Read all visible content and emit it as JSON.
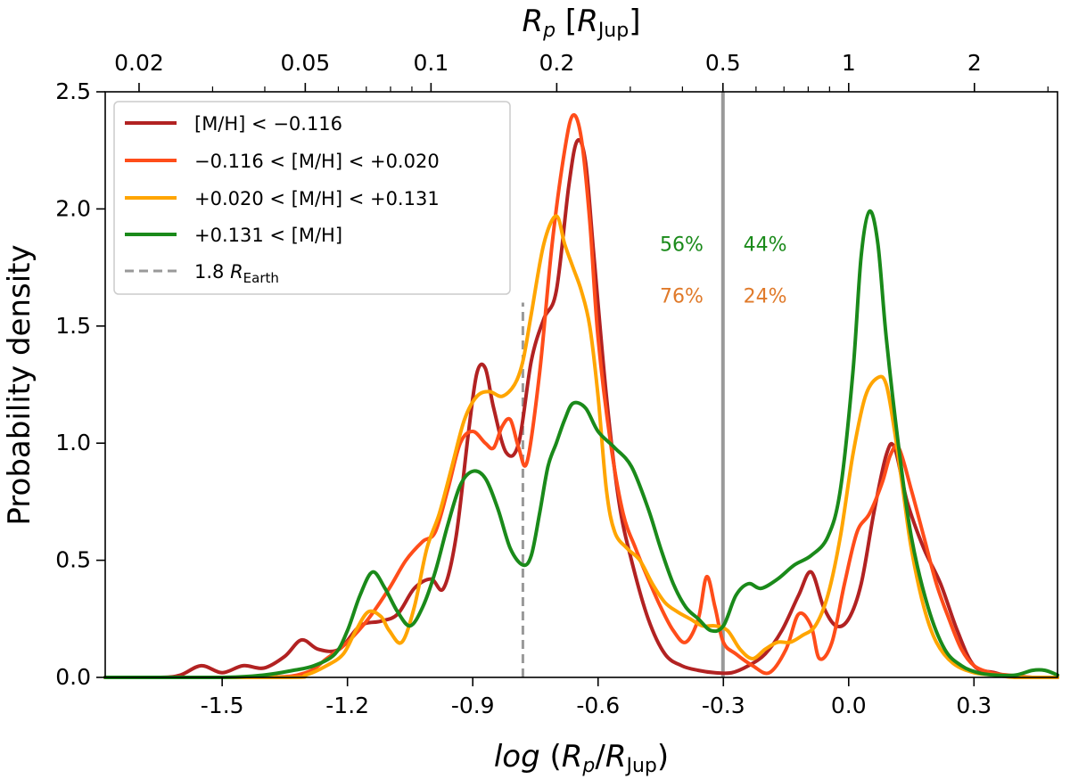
{
  "chart_data": {
    "type": "line",
    "xlabel": "log (R_p/R_Jup)",
    "ylabel": "Probability density",
    "top_xlabel": "R_p [R_Jup]",
    "xlim": [
      -1.78,
      0.5
    ],
    "ylim": [
      0,
      2.5
    ],
    "x_ticks": [
      -1.5,
      -1.2,
      -0.9,
      -0.6,
      -0.3,
      0.0,
      0.3
    ],
    "x_tick_labels": [
      "-1.5",
      "-1.2",
      "-0.9",
      "-0.6",
      "-0.3",
      "0.0",
      "0.3"
    ],
    "y_ticks": [
      0.0,
      0.5,
      1.0,
      1.5,
      2.0,
      2.5
    ],
    "y_tick_labels": [
      "0.0",
      "0.5",
      "1.0",
      "1.5",
      "2.0",
      "2.5"
    ],
    "top_ticks": [
      0.02,
      0.05,
      0.1,
      0.2,
      0.5,
      1,
      2
    ],
    "top_tick_labels": [
      "0.02",
      "0.05",
      "0.1",
      "0.2",
      "0.5",
      "1",
      "2"
    ],
    "top_minor_ticks": [
      0.03,
      0.04,
      0.06,
      0.07,
      0.08,
      0.09,
      0.3,
      0.4,
      0.6,
      0.7,
      0.8,
      0.9,
      3
    ],
    "legend_position": "upper-left",
    "reference_lines": [
      {
        "name": "1.8 R_Earth",
        "x": -0.78,
        "ymax": 1.6,
        "style": "dashed",
        "color": "#999999"
      },
      {
        "name": "split",
        "x": -0.301,
        "style": "solid",
        "color": "#999999"
      }
    ],
    "annotations": [
      {
        "text": "56%",
        "x": -0.4,
        "y": 1.82,
        "color": "#1a8a1a"
      },
      {
        "text": "44%",
        "x": -0.2,
        "y": 1.82,
        "color": "#1a8a1a"
      },
      {
        "text": "76%",
        "x": -0.4,
        "y": 1.6,
        "color": "#e07a2a"
      },
      {
        "text": "24%",
        "x": -0.2,
        "y": 1.6,
        "color": "#e07a2a"
      }
    ],
    "series": [
      {
        "name": "[M/H] < −0.116",
        "color": "#b22222",
        "x": [
          -1.78,
          -1.65,
          -1.6,
          -1.55,
          -1.5,
          -1.45,
          -1.4,
          -1.35,
          -1.31,
          -1.27,
          -1.22,
          -1.17,
          -1.12,
          -1.08,
          -1.04,
          -1.0,
          -0.97,
          -0.94,
          -0.91,
          -0.89,
          -0.87,
          -0.85,
          -0.82,
          -0.79,
          -0.76,
          -0.73,
          -0.7,
          -0.67,
          -0.65,
          -0.63,
          -0.61,
          -0.58,
          -0.55,
          -0.52,
          -0.48,
          -0.44,
          -0.4,
          -0.36,
          -0.32,
          -0.28,
          -0.24,
          -0.2,
          -0.16,
          -0.12,
          -0.09,
          -0.06,
          -0.03,
          0.0,
          0.03,
          0.06,
          0.09,
          0.11,
          0.14,
          0.18,
          0.22,
          0.26,
          0.3,
          0.35,
          0.4,
          0.45,
          0.5
        ],
        "y": [
          0.0,
          0.0,
          0.01,
          0.05,
          0.02,
          0.05,
          0.04,
          0.09,
          0.16,
          0.12,
          0.12,
          0.22,
          0.24,
          0.27,
          0.38,
          0.42,
          0.38,
          0.6,
          1.05,
          1.3,
          1.32,
          1.15,
          0.96,
          1.0,
          1.35,
          1.53,
          1.65,
          2.1,
          2.29,
          2.2,
          1.8,
          1.2,
          0.75,
          0.5,
          0.25,
          0.1,
          0.05,
          0.03,
          0.02,
          0.02,
          0.05,
          0.1,
          0.2,
          0.35,
          0.45,
          0.3,
          0.22,
          0.25,
          0.4,
          0.7,
          0.95,
          0.98,
          0.75,
          0.55,
          0.4,
          0.2,
          0.05,
          0.02,
          0.0,
          0.0,
          0.0
        ]
      },
      {
        "name": "−0.116 < [M/H] < +0.020",
        "color": "#ff4d1a",
        "x": [
          -1.78,
          -1.4,
          -1.3,
          -1.25,
          -1.2,
          -1.15,
          -1.1,
          -1.06,
          -1.02,
          -0.99,
          -0.96,
          -0.93,
          -0.9,
          -0.87,
          -0.85,
          -0.83,
          -0.81,
          -0.79,
          -0.77,
          -0.74,
          -0.71,
          -0.68,
          -0.66,
          -0.64,
          -0.62,
          -0.6,
          -0.57,
          -0.54,
          -0.51,
          -0.48,
          -0.45,
          -0.42,
          -0.39,
          -0.36,
          -0.34,
          -0.32,
          -0.3,
          -0.27,
          -0.23,
          -0.19,
          -0.15,
          -0.12,
          -0.09,
          -0.07,
          -0.04,
          -0.01,
          0.02,
          0.05,
          0.08,
          0.1,
          0.12,
          0.15,
          0.18,
          0.21,
          0.24,
          0.27,
          0.3,
          0.34,
          0.38,
          0.44,
          0.5
        ],
        "y": [
          0.0,
          0.0,
          0.02,
          0.08,
          0.15,
          0.25,
          0.38,
          0.5,
          0.58,
          0.62,
          0.8,
          1.0,
          1.05,
          1.0,
          0.98,
          1.07,
          1.1,
          0.98,
          0.92,
          1.3,
          1.85,
          2.25,
          2.4,
          2.3,
          1.95,
          1.45,
          1.0,
          0.7,
          0.55,
          0.42,
          0.3,
          0.2,
          0.15,
          0.25,
          0.43,
          0.3,
          0.15,
          0.1,
          0.05,
          0.02,
          0.12,
          0.27,
          0.22,
          0.08,
          0.15,
          0.4,
          0.62,
          0.7,
          0.83,
          0.95,
          0.98,
          0.8,
          0.6,
          0.4,
          0.25,
          0.12,
          0.05,
          0.02,
          0.01,
          0.0,
          0.0
        ]
      },
      {
        "name": "+0.020 < [M/H] < +0.131",
        "color": "#ffa500",
        "x": [
          -1.78,
          -1.35,
          -1.3,
          -1.25,
          -1.21,
          -1.18,
          -1.15,
          -1.12,
          -1.1,
          -1.07,
          -1.04,
          -1.01,
          -0.98,
          -0.95,
          -0.92,
          -0.89,
          -0.86,
          -0.83,
          -0.8,
          -0.78,
          -0.76,
          -0.73,
          -0.7,
          -0.68,
          -0.66,
          -0.64,
          -0.62,
          -0.6,
          -0.58,
          -0.56,
          -0.53,
          -0.5,
          -0.47,
          -0.44,
          -0.41,
          -0.38,
          -0.35,
          -0.32,
          -0.29,
          -0.26,
          -0.23,
          -0.2,
          -0.17,
          -0.14,
          -0.11,
          -0.08,
          -0.05,
          -0.02,
          0.01,
          0.04,
          0.07,
          0.09,
          0.11,
          0.13,
          0.15,
          0.18,
          0.21,
          0.25,
          0.3,
          0.35,
          0.4,
          0.5
        ],
        "y": [
          0.0,
          0.0,
          0.01,
          0.05,
          0.1,
          0.2,
          0.28,
          0.26,
          0.2,
          0.15,
          0.3,
          0.55,
          0.7,
          0.9,
          1.1,
          1.2,
          1.22,
          1.2,
          1.25,
          1.35,
          1.55,
          1.85,
          1.97,
          1.85,
          1.75,
          1.65,
          1.5,
          1.2,
          0.8,
          0.62,
          0.55,
          0.5,
          0.4,
          0.32,
          0.28,
          0.25,
          0.22,
          0.22,
          0.2,
          0.12,
          0.08,
          0.12,
          0.15,
          0.15,
          0.18,
          0.22,
          0.35,
          0.6,
          0.95,
          1.2,
          1.28,
          1.25,
          1.05,
          0.8,
          0.55,
          0.3,
          0.15,
          0.06,
          0.02,
          0.01,
          0.0,
          0.0
        ]
      },
      {
        "name": "+0.131 < [M/H]",
        "color": "#1a8a1a",
        "x": [
          -1.78,
          -1.5,
          -1.4,
          -1.33,
          -1.28,
          -1.23,
          -1.2,
          -1.17,
          -1.14,
          -1.11,
          -1.08,
          -1.05,
          -1.02,
          -0.99,
          -0.96,
          -0.93,
          -0.9,
          -0.87,
          -0.84,
          -0.81,
          -0.78,
          -0.76,
          -0.74,
          -0.72,
          -0.7,
          -0.68,
          -0.66,
          -0.63,
          -0.6,
          -0.56,
          -0.52,
          -0.48,
          -0.45,
          -0.42,
          -0.39,
          -0.36,
          -0.33,
          -0.3,
          -0.27,
          -0.24,
          -0.21,
          -0.17,
          -0.13,
          -0.09,
          -0.05,
          -0.02,
          0.01,
          0.03,
          0.05,
          0.07,
          0.09,
          0.12,
          0.15,
          0.19,
          0.23,
          0.27,
          0.31,
          0.35,
          0.4,
          0.44,
          0.47,
          0.5
        ],
        "y": [
          0.0,
          0.0,
          0.01,
          0.03,
          0.05,
          0.1,
          0.2,
          0.35,
          0.45,
          0.38,
          0.28,
          0.22,
          0.3,
          0.45,
          0.65,
          0.82,
          0.88,
          0.85,
          0.72,
          0.55,
          0.48,
          0.52,
          0.7,
          0.9,
          1.0,
          1.1,
          1.17,
          1.15,
          1.05,
          0.98,
          0.9,
          0.72,
          0.55,
          0.4,
          0.3,
          0.25,
          0.2,
          0.22,
          0.35,
          0.4,
          0.38,
          0.42,
          0.48,
          0.52,
          0.6,
          0.8,
          1.3,
          1.8,
          1.99,
          1.85,
          1.45,
          0.98,
          0.6,
          0.3,
          0.12,
          0.05,
          0.02,
          0.01,
          0.01,
          0.03,
          0.03,
          0.01
        ]
      }
    ],
    "legend": [
      {
        "label": "[M/H] < −0.116",
        "color": "#b22222",
        "style": "solid"
      },
      {
        "label": "−0.116 < [M/H] < +0.020",
        "color": "#ff4d1a",
        "style": "solid"
      },
      {
        "label": "+0.020 < [M/H] < +0.131",
        "color": "#ffa500",
        "style": "solid"
      },
      {
        "label": "+0.131 < [M/H]",
        "color": "#1a8a1a",
        "style": "solid"
      },
      {
        "label": "1.8 R_Earth",
        "color": "#999999",
        "style": "dashed"
      }
    ]
  }
}
